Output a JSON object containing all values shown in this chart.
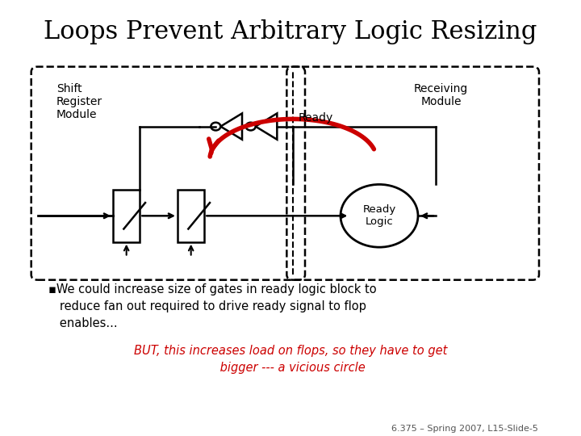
{
  "title": "Loops Prevent Arbitrary Logic Resizing",
  "title_fontsize": 22,
  "shift_label": "Shift\nRegister\nModule",
  "receiving_label": "Receiving\nModule",
  "ready_label": "Ready",
  "ready_logic_label": "Ready\nLogic",
  "bullet_text": "▪We could increase size of gates in ready logic block to\n   reduce fan out required to drive ready signal to flop\n   enables...",
  "italic_text": "BUT, this increases load on flops, so they have to get\n bigger --- a vicious circle",
  "footer": "6.375 – Spring 2007, L15-Slide-5",
  "bg_color": "#ffffff",
  "box_color": "#000000",
  "red_color": "#cc0000",
  "text_color": "#000000",
  "footer_color": "#555555"
}
